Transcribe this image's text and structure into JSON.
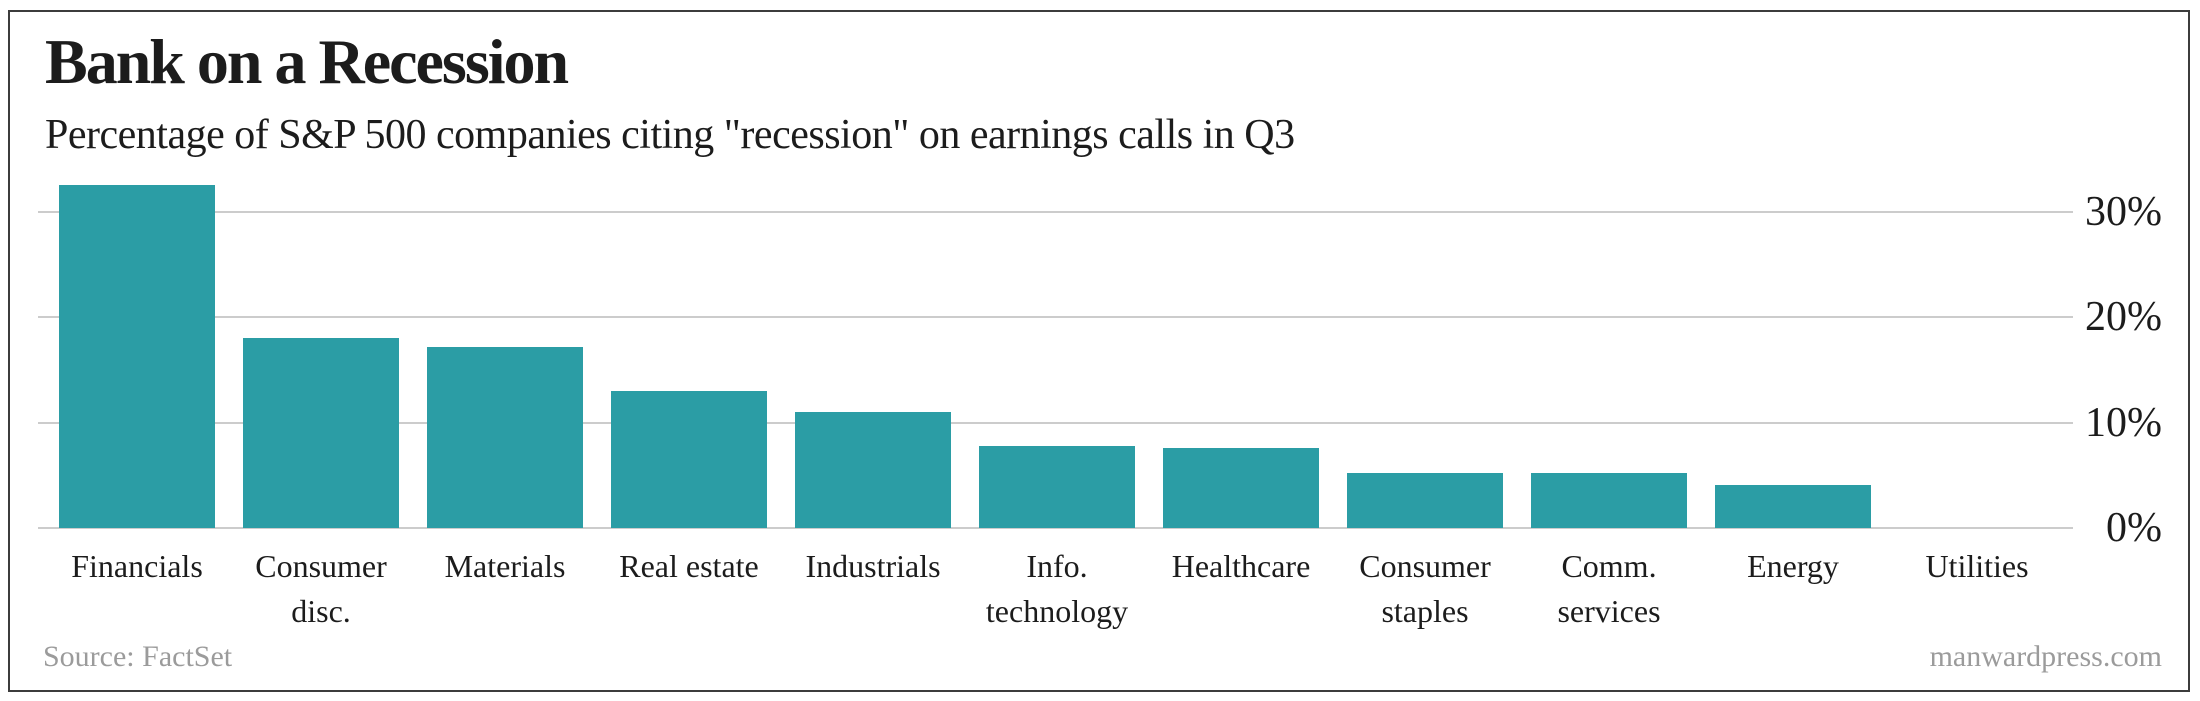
{
  "header": {
    "title": "Bank on a Recession",
    "subtitle": "Percentage of S&P 500 companies citing \"recession\" on earnings calls in Q3"
  },
  "footer": {
    "source": "Source: FactSet",
    "watermark": "manwardpress.com"
  },
  "colors": {
    "bar": "#2b9da5",
    "gridline": "#cccccc",
    "text": "#1c1c1c",
    "muted_text": "#9b9b9b",
    "frame_border": "#3c3c3c",
    "background": "#ffffff"
  },
  "chart_data": {
    "type": "bar",
    "title": "Bank on a Recession",
    "subtitle": "Percentage of S&P 500 companies citing \"recession\" on earnings calls in Q3",
    "xlabel": "",
    "ylabel": "",
    "categories": [
      "Financials",
      "Consumer disc.",
      "Materials",
      "Real estate",
      "Industrials",
      "Info. technology",
      "Healthcare",
      "Consumer staples",
      "Comm. services",
      "Energy",
      "Utilities"
    ],
    "categories_wrapped": [
      [
        "Financials"
      ],
      [
        "Consumer",
        "disc."
      ],
      [
        "Materials"
      ],
      [
        "Real estate"
      ],
      [
        "Industrials"
      ],
      [
        "Info.",
        "technology"
      ],
      [
        "Healthcare"
      ],
      [
        "Consumer",
        "staples"
      ],
      [
        "Comm.",
        "services"
      ],
      [
        "Energy"
      ],
      [
        "Utilities"
      ]
    ],
    "values": [
      32.5,
      18,
      17.2,
      13,
      11,
      7.8,
      7.6,
      5.2,
      5.2,
      4.1,
      0
    ],
    "unit": "%",
    "ylim": [
      0,
      32.5
    ],
    "yticks": [
      {
        "label": "30%",
        "value": 30
      },
      {
        "label": "20%",
        "value": 20
      },
      {
        "label": "10%",
        "value": 10
      },
      {
        "label": "0%",
        "value": 0
      }
    ],
    "grid": "horizontal",
    "legend": "none",
    "tick_label_side": "right"
  }
}
